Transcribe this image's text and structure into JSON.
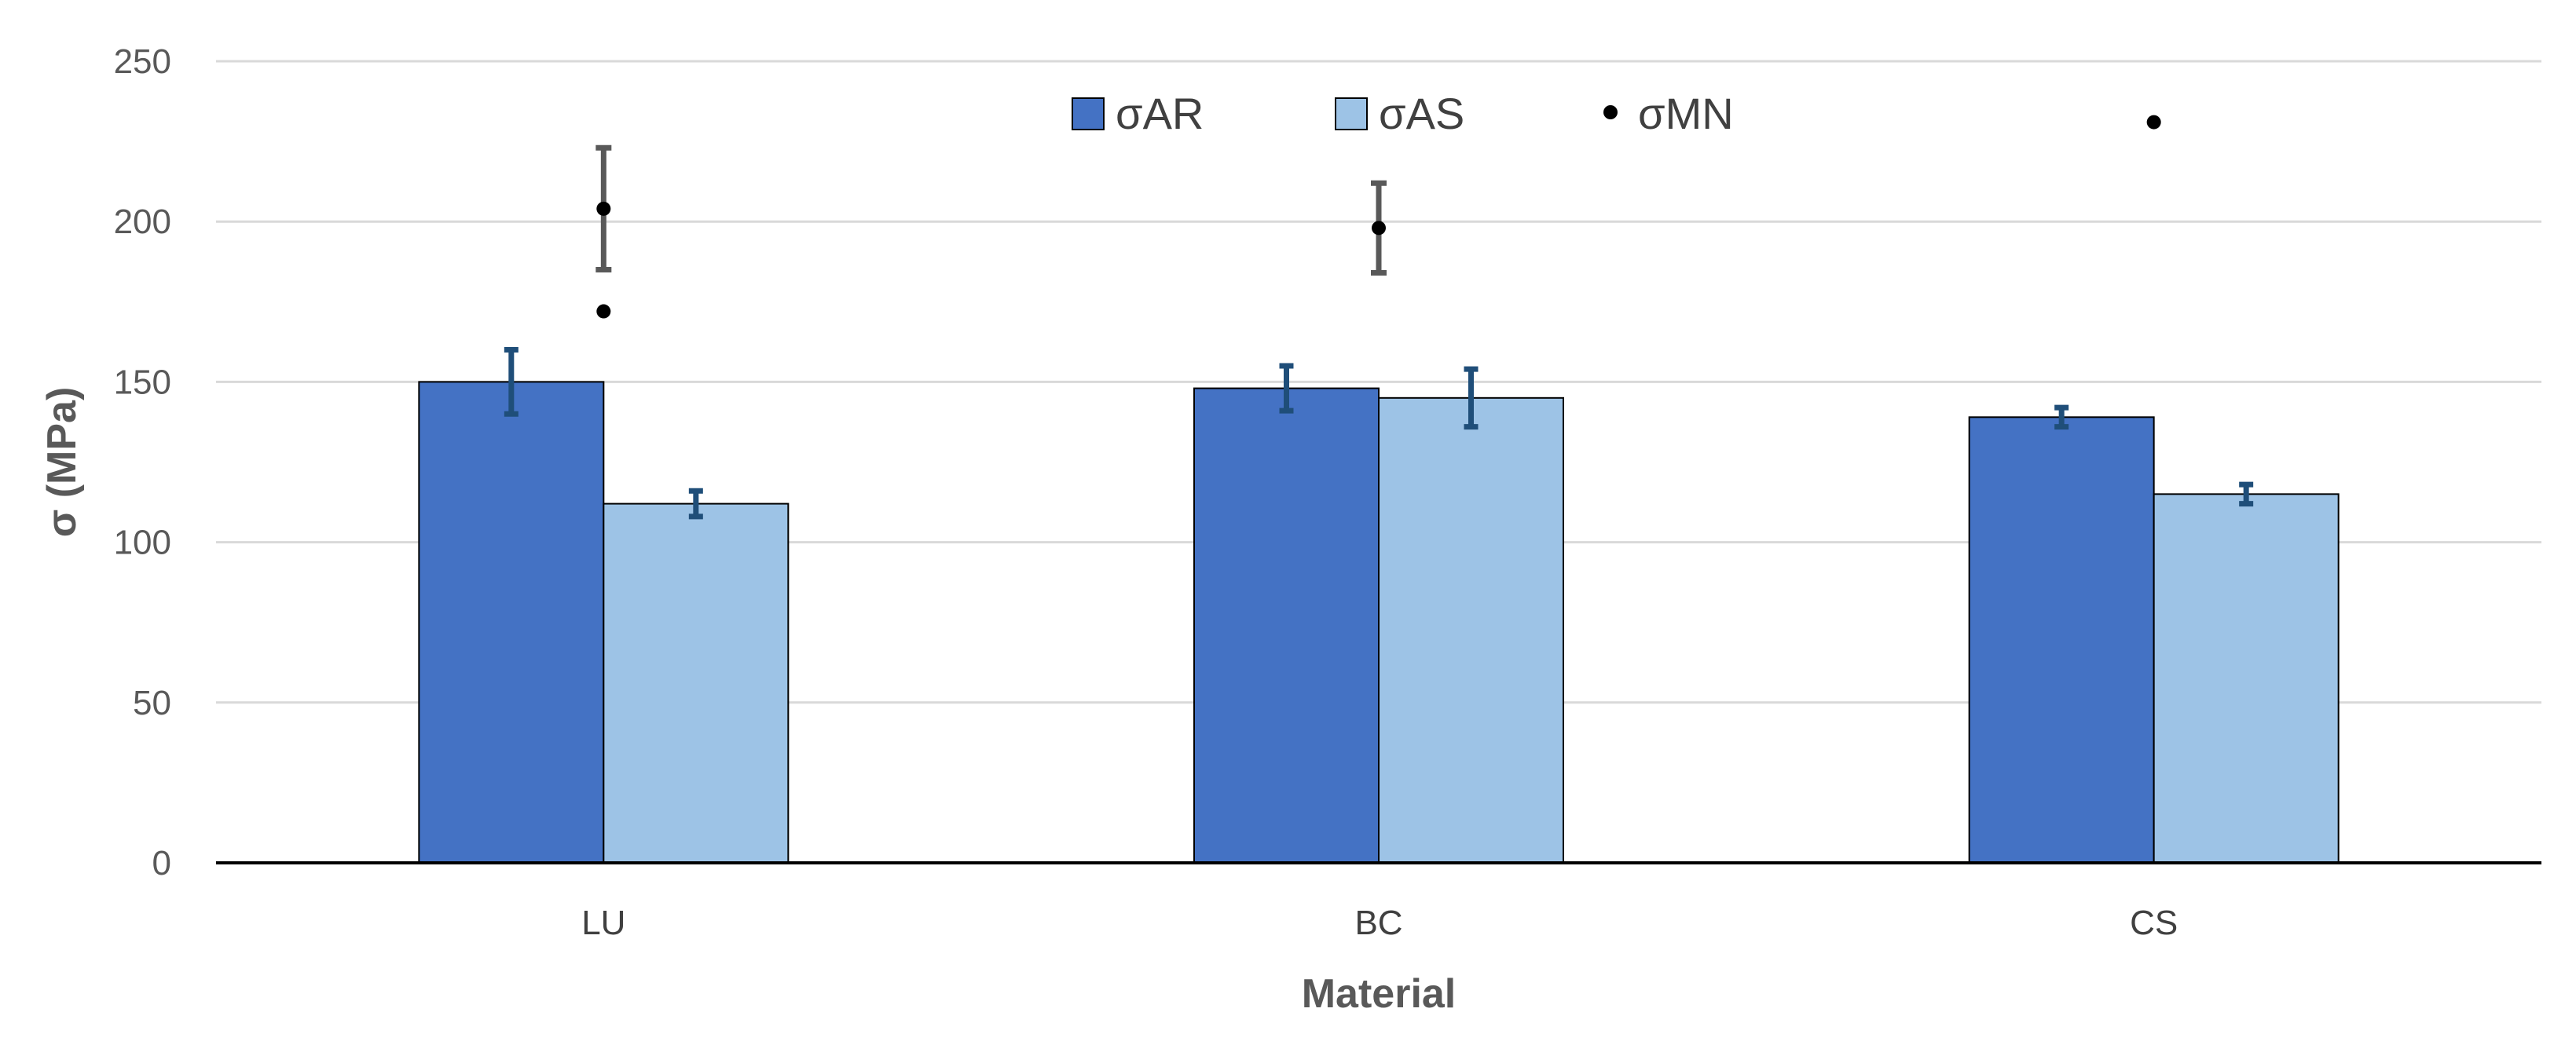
{
  "chart_data": {
    "type": "bar",
    "xlabel": "Material",
    "ylabel": "σ (MPa)",
    "ylim": [
      0,
      250
    ],
    "yticks": [
      0,
      50,
      100,
      150,
      200,
      250
    ],
    "grid": true,
    "legend_position": "top-center",
    "categories": [
      "LU",
      "BC",
      "CS"
    ],
    "series": [
      {
        "name": "σAR",
        "kind": "bar",
        "color": "#4472c4",
        "values": [
          150,
          148,
          139
        ],
        "errors": [
          10,
          7,
          3
        ]
      },
      {
        "name": "σAS",
        "kind": "bar",
        "color": "#9dc3e6",
        "values": [
          112,
          145,
          115
        ],
        "errors": [
          4,
          9,
          3
        ]
      },
      {
        "name": "σMN",
        "kind": "point",
        "color": "#000000",
        "values": [
          172,
          null,
          231
        ]
      }
    ],
    "extra_points": [
      {
        "category": "LU",
        "value": 204,
        "error": 19,
        "color": "#000000",
        "error_color": "#595959"
      },
      {
        "category": "BC",
        "value": 198,
        "error": 14,
        "color": "#000000",
        "error_color": "#595959"
      }
    ]
  }
}
